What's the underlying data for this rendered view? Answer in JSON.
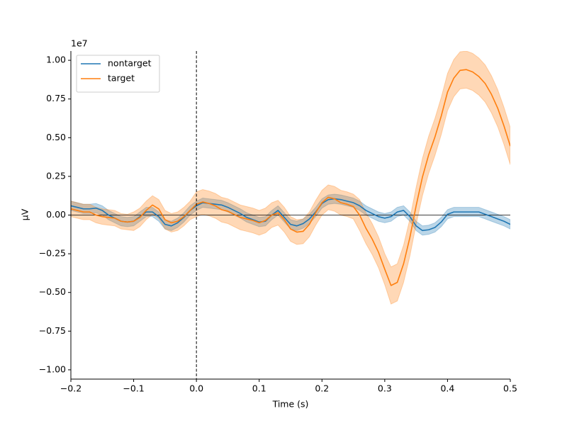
{
  "chart_data": {
    "type": "line",
    "xlabel": "Time (s)",
    "ylabel": "µV",
    "y_offset_text": "1e7",
    "xlim": [
      -0.2,
      0.5
    ],
    "ylim": [
      -1.06,
      1.06
    ],
    "xticks": [
      {
        "value": -0.2,
        "label": "−0.2"
      },
      {
        "value": -0.1,
        "label": "−0.1"
      },
      {
        "value": 0,
        "label": "0.0"
      },
      0.1,
      0.2,
      0.3,
      0.4,
      0.5
    ],
    "yticks": [
      {
        "value": -1,
        "label": "−1.00"
      },
      {
        "value": -0.75,
        "label": "−0.75"
      },
      {
        "value": -0.5,
        "label": "−0.50"
      },
      {
        "value": -0.25,
        "label": "−0.25"
      },
      {
        "value": 0,
        "label": "0.00"
      },
      {
        "value": 0.25,
        "label": "0.25"
      },
      {
        "value": 0.5,
        "label": "0.50"
      },
      {
        "value": 0.75,
        "label": "0.75"
      },
      {
        "value": 1,
        "label": "1.00"
      }
    ],
    "hlines": [
      0
    ],
    "vlines": [
      0
    ],
    "legend": "upper left",
    "x": [
      -0.2,
      -0.19,
      -0.18,
      -0.17,
      -0.16,
      -0.15,
      -0.14,
      -0.13,
      -0.12,
      -0.11,
      -0.1,
      -0.09,
      -0.08,
      -0.07,
      -0.06,
      -0.05,
      -0.04,
      -0.03,
      -0.02,
      -0.01,
      0,
      0.01,
      0.02,
      0.03,
      0.04,
      0.05,
      0.06,
      0.07,
      0.08,
      0.09,
      0.1,
      0.11,
      0.12,
      0.13,
      0.14,
      0.15,
      0.16,
      0.17,
      0.18,
      0.19,
      0.2,
      0.21,
      0.22,
      0.23,
      0.24,
      0.25,
      0.26,
      0.27,
      0.28,
      0.29,
      0.3,
      0.31,
      0.32,
      0.33,
      0.34,
      0.35,
      0.36,
      0.37,
      0.38,
      0.39,
      0.4,
      0.41,
      0.42,
      0.43,
      0.44,
      0.45,
      0.46,
      0.47,
      0.48,
      0.49,
      0.5
    ],
    "series": [
      {
        "name": "nontarget",
        "color": "#1f77b4",
        "values": [
          0.06,
          0.05,
          0.04,
          0.04,
          0.045,
          0.03,
          0.0,
          -0.02,
          -0.04,
          -0.045,
          -0.04,
          -0.01,
          0.02,
          0.02,
          -0.01,
          -0.06,
          -0.07,
          -0.05,
          -0.015,
          0.03,
          0.06,
          0.08,
          0.075,
          0.07,
          0.065,
          0.05,
          0.03,
          0.01,
          -0.015,
          -0.03,
          -0.045,
          -0.04,
          0.0,
          0.03,
          -0.015,
          -0.06,
          -0.07,
          -0.055,
          -0.025,
          0.02,
          0.075,
          0.1,
          0.105,
          0.1,
          0.09,
          0.08,
          0.06,
          0.03,
          0.01,
          -0.01,
          -0.02,
          -0.01,
          0.02,
          0.03,
          -0.01,
          -0.07,
          -0.1,
          -0.095,
          -0.08,
          -0.045,
          0.005,
          0.02,
          0.02,
          0.02,
          0.02,
          0.02,
          0.005,
          -0.01,
          -0.025,
          -0.04,
          -0.06
        ],
        "ci_lower": [
          0.03,
          0.02,
          0.01,
          0.01,
          0.015,
          0,
          -0.03,
          -0.05,
          -0.07,
          -0.075,
          -0.07,
          -0.04,
          -0.01,
          -0.01,
          -0.04,
          -0.09,
          -0.1,
          -0.08,
          -0.045,
          0,
          0.03,
          0.05,
          0.045,
          0.04,
          0.035,
          0.02,
          0,
          -0.02,
          -0.045,
          -0.06,
          -0.075,
          -0.07,
          -0.03,
          0,
          -0.045,
          -0.09,
          -0.1,
          -0.085,
          -0.055,
          -0.01,
          0.045,
          0.07,
          0.075,
          0.07,
          0.06,
          0.05,
          0.03,
          0,
          -0.02,
          -0.04,
          -0.05,
          -0.04,
          -0.01,
          0,
          -0.04,
          -0.1,
          -0.13,
          -0.125,
          -0.11,
          -0.075,
          -0.025,
          -0.01,
          -0.01,
          -0.01,
          -0.01,
          -0.01,
          -0.025,
          -0.04,
          -0.055,
          -0.07,
          -0.09
        ],
        "ci_upper": [
          0.09,
          0.08,
          0.07,
          0.07,
          0.075,
          0.06,
          0.03,
          0.01,
          -0.01,
          -0.015,
          -0.01,
          0.02,
          0.05,
          0.05,
          0.02,
          -0.03,
          -0.04,
          -0.02,
          0.015,
          0.06,
          0.09,
          0.11,
          0.105,
          0.1,
          0.095,
          0.08,
          0.06,
          0.04,
          0.015,
          0,
          -0.015,
          -0.01,
          0.03,
          0.06,
          0.015,
          -0.03,
          -0.04,
          -0.025,
          0.005,
          0.05,
          0.105,
          0.13,
          0.135,
          0.13,
          0.12,
          0.11,
          0.09,
          0.06,
          0.04,
          0.02,
          0.01,
          0.02,
          0.05,
          0.06,
          0.02,
          -0.04,
          -0.07,
          -0.065,
          -0.05,
          -0.015,
          0.035,
          0.05,
          0.05,
          0.05,
          0.05,
          0.05,
          0.035,
          0.02,
          0.005,
          -0.01,
          -0.03
        ]
      },
      {
        "name": "target",
        "color": "#ff7f0e",
        "values": [
          0.04,
          0.03,
          0.02,
          0.02,
          0.0,
          -0.01,
          -0.015,
          -0.02,
          -0.04,
          -0.045,
          -0.04,
          -0.015,
          0.03,
          0.065,
          0.04,
          -0.03,
          -0.05,
          -0.04,
          -0.01,
          0.03,
          0.07,
          0.085,
          0.075,
          0.06,
          0.035,
          0.025,
          0.005,
          -0.015,
          -0.025,
          -0.035,
          -0.05,
          -0.035,
          0.0,
          0.015,
          -0.03,
          -0.09,
          -0.11,
          -0.105,
          -0.06,
          0.015,
          0.08,
          0.115,
          0.105,
          0.08,
          0.07,
          0.055,
          0.0,
          -0.085,
          -0.155,
          -0.24,
          -0.35,
          -0.455,
          -0.435,
          -0.315,
          -0.145,
          0.06,
          0.245,
          0.39,
          0.505,
          0.64,
          0.795,
          0.885,
          0.935,
          0.94,
          0.925,
          0.895,
          0.85,
          0.78,
          0.69,
          0.575,
          0.445
        ],
        "ci_lower": [
          -0.01,
          -0.02,
          -0.03,
          -0.03,
          -0.05,
          -0.06,
          -0.065,
          -0.07,
          -0.09,
          -0.095,
          -0.1,
          -0.075,
          -0.03,
          0.005,
          -0.02,
          -0.09,
          -0.11,
          -0.1,
          -0.07,
          -0.03,
          -0.01,
          0.005,
          -0.005,
          -0.02,
          -0.045,
          -0.055,
          -0.075,
          -0.095,
          -0.105,
          -0.115,
          -0.13,
          -0.115,
          -0.08,
          -0.065,
          -0.11,
          -0.17,
          -0.19,
          -0.185,
          -0.14,
          -0.065,
          0,
          0.035,
          0.025,
          0,
          -0.01,
          -0.025,
          -0.1,
          -0.185,
          -0.255,
          -0.34,
          -0.45,
          -0.575,
          -0.555,
          -0.435,
          -0.265,
          -0.06,
          0.125,
          0.27,
          0.385,
          0.52,
          0.675,
          0.765,
          0.815,
          0.82,
          0.805,
          0.775,
          0.73,
          0.66,
          0.57,
          0.455,
          0.325
        ],
        "ci_upper": [
          0.09,
          0.08,
          0.07,
          0.07,
          0.05,
          0.04,
          0.035,
          0.03,
          0.01,
          0.005,
          0.02,
          0.045,
          0.09,
          0.125,
          0.1,
          0.03,
          0.01,
          0.02,
          0.05,
          0.09,
          0.15,
          0.165,
          0.155,
          0.14,
          0.115,
          0.105,
          0.085,
          0.065,
          0.055,
          0.045,
          0.03,
          0.045,
          0.08,
          0.095,
          0.05,
          -0.01,
          -0.03,
          -0.025,
          0.02,
          0.095,
          0.16,
          0.195,
          0.185,
          0.16,
          0.15,
          0.135,
          0.1,
          0.015,
          -0.055,
          -0.14,
          -0.25,
          -0.335,
          -0.315,
          -0.195,
          -0.025,
          0.18,
          0.365,
          0.51,
          0.625,
          0.76,
          0.915,
          1.005,
          1.055,
          1.06,
          1.045,
          1.015,
          0.97,
          0.9,
          0.81,
          0.695,
          0.565
        ]
      }
    ]
  }
}
